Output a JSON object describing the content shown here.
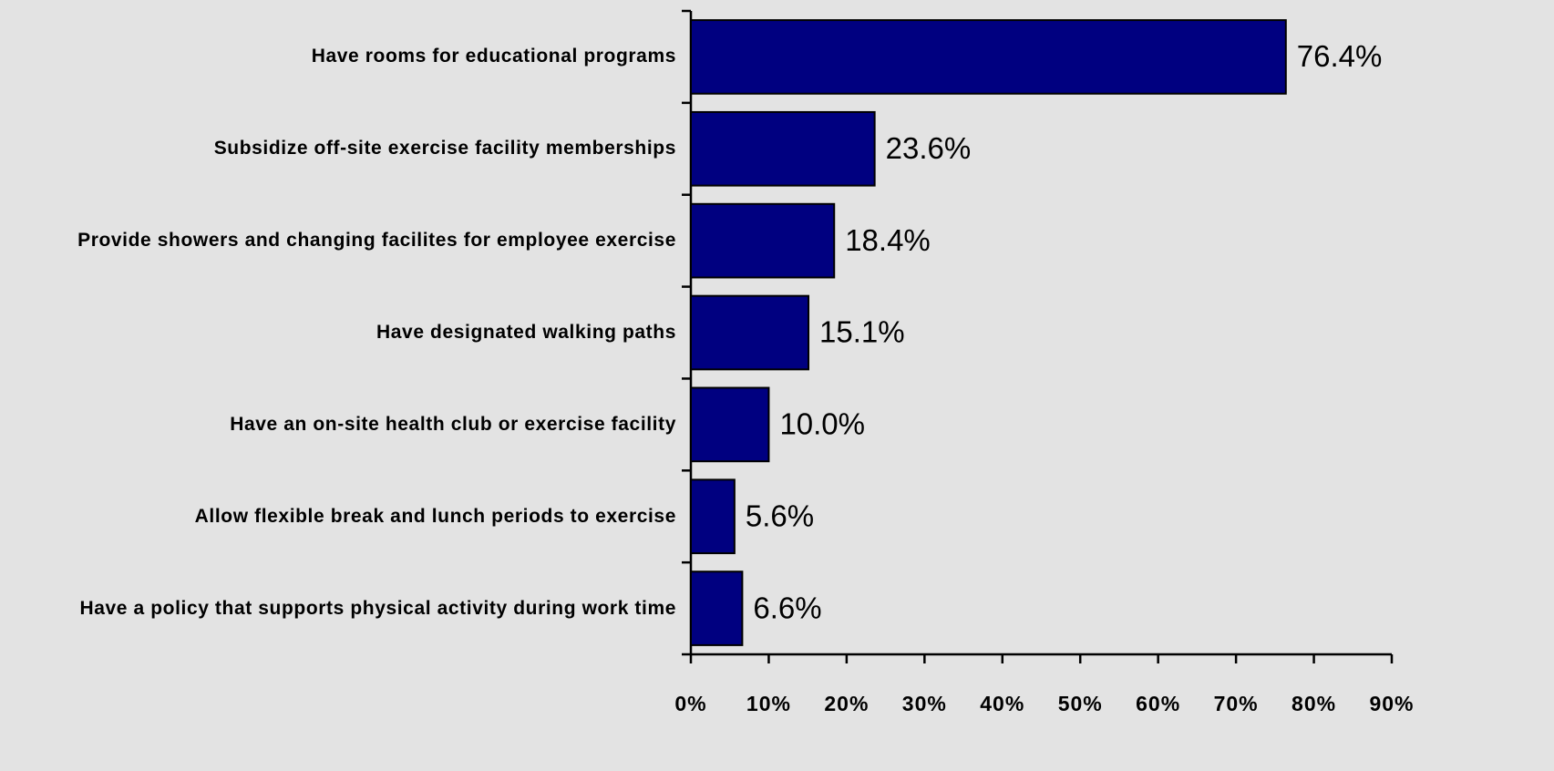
{
  "chart_data": {
    "type": "bar",
    "orientation": "horizontal",
    "categories": [
      "Have rooms for educational programs",
      "Subsidize off-site exercise facility memberships",
      "Provide showers and changing facilites for employee exercise",
      "Have designated walking paths",
      "Have an on-site health club or exercise facility",
      "Allow flexible break and lunch periods to exercise",
      "Have a policy that supports physical activity during work time"
    ],
    "values": [
      76.4,
      23.6,
      18.4,
      15.1,
      10.0,
      5.6,
      6.6
    ],
    "value_labels": [
      "76.4%",
      "23.6%",
      "18.4%",
      "15.1%",
      "10.0%",
      "5.6%",
      "6.6%"
    ],
    "color": "#000080",
    "xlim": [
      0,
      90
    ],
    "xticks": [
      {
        "value": 0,
        "label": "0%"
      },
      {
        "value": 10,
        "label": "10%"
      },
      {
        "value": 20,
        "label": "20%"
      },
      {
        "value": 30,
        "label": "30%"
      },
      {
        "value": 40,
        "label": "40%"
      },
      {
        "value": 50,
        "label": "50%"
      },
      {
        "value": 60,
        "label": "60%"
      },
      {
        "value": 70,
        "label": "70%"
      },
      {
        "value": 80,
        "label": "80%"
      },
      {
        "value": 90,
        "label": "90%"
      }
    ],
    "grid": false
  }
}
